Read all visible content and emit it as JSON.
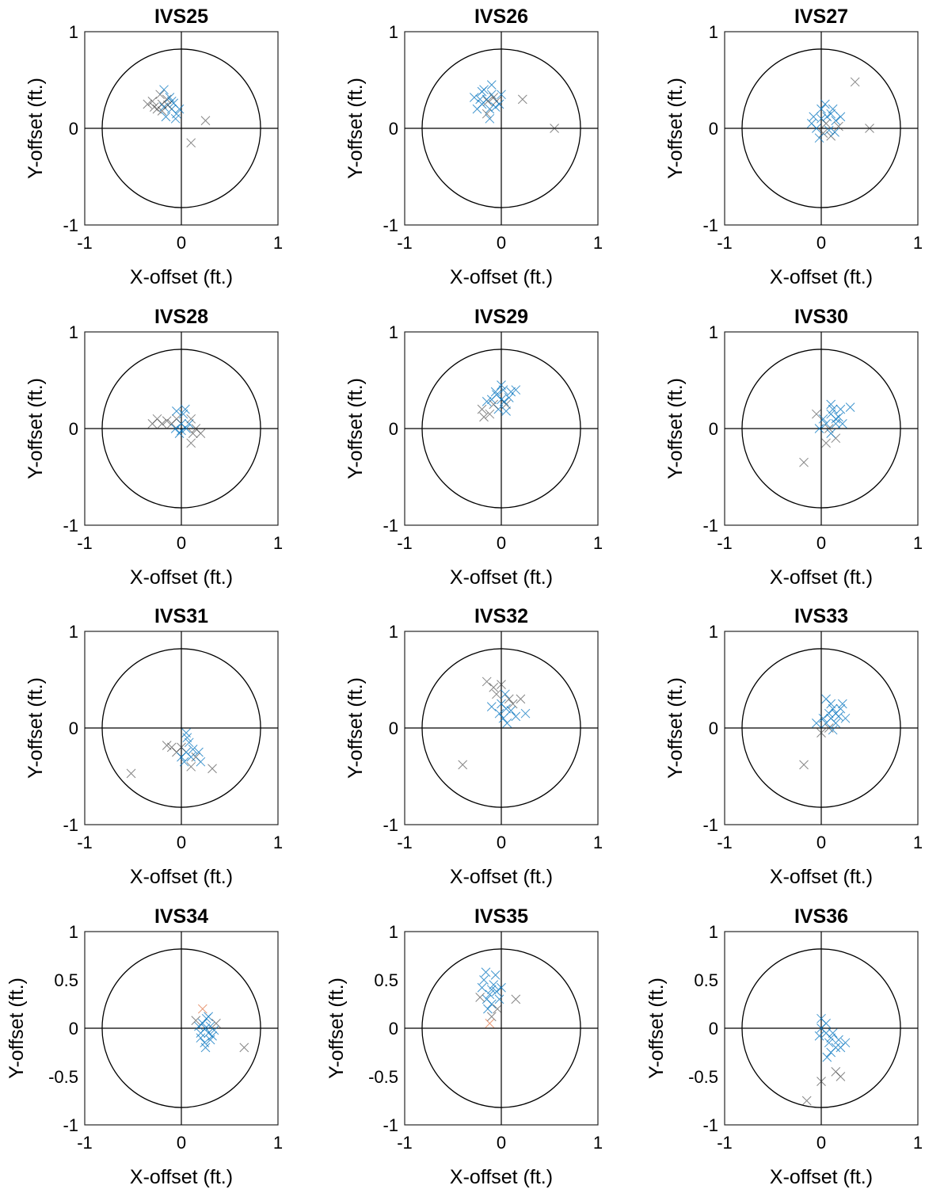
{
  "figure": {
    "xlabel": "X-offset (ft.)",
    "ylabel": "Y-offset (ft.)",
    "marker_colors": [
      "#0072BD",
      "#333333",
      "#D95319"
    ]
  },
  "chart_data": [
    {
      "type": "scatter",
      "title": "IVS25",
      "xlim": [
        -1,
        1
      ],
      "ylim": [
        -1,
        1
      ],
      "xticks": [
        "-1",
        "0",
        "1"
      ],
      "yticks": [
        "-1",
        "0",
        "1"
      ],
      "circle_radius": 0.82,
      "xlabel": "X-offset (ft.)",
      "ylabel": "Y-offset (ft.)",
      "points": [
        [
          -0.2,
          0.25,
          1
        ],
        [
          -0.15,
          0.3,
          1
        ],
        [
          -0.1,
          0.2,
          0
        ],
        [
          -0.25,
          0.2,
          1
        ],
        [
          -0.05,
          0.15,
          0
        ],
        [
          -0.18,
          0.22,
          0
        ],
        [
          -0.3,
          0.28,
          1
        ],
        [
          -0.12,
          0.32,
          0
        ],
        [
          -0.2,
          0.18,
          1
        ],
        [
          -0.08,
          0.26,
          0
        ],
        [
          -0.22,
          0.35,
          1
        ],
        [
          -0.02,
          0.2,
          0
        ],
        [
          -0.16,
          0.12,
          0
        ],
        [
          -0.28,
          0.22,
          1
        ],
        [
          -0.1,
          0.28,
          0
        ],
        [
          -0.06,
          0.1,
          0
        ],
        [
          -0.14,
          0.24,
          1
        ],
        [
          0.25,
          0.08,
          1
        ],
        [
          0.1,
          -0.15,
          1
        ],
        [
          -0.18,
          0.4,
          0
        ],
        [
          -0.35,
          0.25,
          1
        ]
      ]
    },
    {
      "type": "scatter",
      "title": "IVS26",
      "xlim": [
        -1,
        1
      ],
      "ylim": [
        -1,
        1
      ],
      "xticks": [
        "-1",
        "0",
        "1"
      ],
      "yticks": [
        "-1",
        "0",
        "1"
      ],
      "circle_radius": 0.82,
      "xlabel": "X-offset (ft.)",
      "ylabel": "Y-offset (ft.)",
      "points": [
        [
          -0.15,
          0.3,
          0
        ],
        [
          -0.1,
          0.35,
          0
        ],
        [
          -0.2,
          0.25,
          0
        ],
        [
          -0.05,
          0.28,
          1
        ],
        [
          -0.18,
          0.4,
          0
        ],
        [
          -0.12,
          0.2,
          0
        ],
        [
          -0.08,
          0.32,
          1
        ],
        [
          -0.22,
          0.3,
          0
        ],
        [
          -0.1,
          0.45,
          0
        ],
        [
          -0.25,
          0.2,
          0
        ],
        [
          -0.02,
          0.25,
          0
        ],
        [
          -0.15,
          0.15,
          1
        ],
        [
          0.0,
          0.35,
          0
        ],
        [
          -0.2,
          0.38,
          0
        ],
        [
          -0.06,
          0.22,
          0
        ],
        [
          -0.14,
          0.28,
          1
        ],
        [
          0.22,
          0.3,
          1
        ],
        [
          0.55,
          0.0,
          1
        ],
        [
          -0.28,
          0.32,
          0
        ],
        [
          -0.12,
          0.1,
          0
        ]
      ]
    },
    {
      "type": "scatter",
      "title": "IVS27",
      "xlim": [
        -1,
        1
      ],
      "ylim": [
        -1,
        1
      ],
      "xticks": [
        "-1",
        "0",
        "1"
      ],
      "yticks": [
        "-1",
        "0",
        "1"
      ],
      "circle_radius": 0.82,
      "xlabel": "X-offset (ft.)",
      "ylabel": "Y-offset (ft.)",
      "points": [
        [
          0.0,
          0.1,
          0
        ],
        [
          0.05,
          0.05,
          1
        ],
        [
          0.1,
          0.15,
          0
        ],
        [
          -0.05,
          0.0,
          0
        ],
        [
          0.02,
          -0.05,
          1
        ],
        [
          0.15,
          0.08,
          0
        ],
        [
          0.08,
          -0.02,
          0
        ],
        [
          -0.08,
          0.12,
          0
        ],
        [
          0.12,
          0.2,
          0
        ],
        [
          0.0,
          0.2,
          0
        ],
        [
          0.18,
          0.02,
          1
        ],
        [
          -0.02,
          -0.1,
          0
        ],
        [
          0.06,
          0.12,
          0
        ],
        [
          0.2,
          0.12,
          0
        ],
        [
          -0.1,
          0.05,
          0
        ],
        [
          0.1,
          -0.08,
          1
        ],
        [
          0.35,
          0.48,
          1
        ],
        [
          0.5,
          0.0,
          1
        ],
        [
          0.04,
          0.25,
          0
        ],
        [
          0.14,
          -0.04,
          0
        ]
      ]
    },
    {
      "type": "scatter",
      "title": "IVS28",
      "xlim": [
        -1,
        1
      ],
      "ylim": [
        -1,
        1
      ],
      "xticks": [
        "-1",
        "0",
        "1"
      ],
      "yticks": [
        "-1",
        "0",
        "1"
      ],
      "circle_radius": 0.82,
      "xlabel": "X-offset (ft.)",
      "ylabel": "Y-offset (ft.)",
      "points": [
        [
          0.0,
          0.05,
          0
        ],
        [
          -0.05,
          0.1,
          1
        ],
        [
          0.05,
          0.0,
          0
        ],
        [
          -0.1,
          0.05,
          1
        ],
        [
          0.02,
          0.15,
          0
        ],
        [
          0.08,
          0.05,
          0
        ],
        [
          -0.02,
          -0.05,
          0
        ],
        [
          -0.15,
          0.08,
          1
        ],
        [
          0.1,
          0.1,
          1
        ],
        [
          0.0,
          -0.02,
          0
        ],
        [
          -0.2,
          0.05,
          1
        ],
        [
          0.12,
          -0.05,
          1
        ],
        [
          0.04,
          0.2,
          0
        ],
        [
          -0.06,
          0.0,
          0
        ],
        [
          0.15,
          0.0,
          1
        ],
        [
          -0.25,
          0.1,
          1
        ],
        [
          -0.05,
          0.18,
          0
        ],
        [
          0.1,
          -0.15,
          1
        ],
        [
          0.2,
          -0.05,
          1
        ],
        [
          -0.3,
          0.05,
          1
        ]
      ]
    },
    {
      "type": "scatter",
      "title": "IVS29",
      "xlim": [
        -1,
        1
      ],
      "ylim": [
        -1,
        1
      ],
      "xticks": [
        "-1",
        "0",
        "1"
      ],
      "yticks": [
        "-1",
        "0",
        "1"
      ],
      "circle_radius": 0.82,
      "xlabel": "X-offset (ft.)",
      "ylabel": "Y-offset (ft.)",
      "points": [
        [
          0.0,
          0.3,
          0
        ],
        [
          -0.05,
          0.35,
          0
        ],
        [
          0.05,
          0.25,
          1
        ],
        [
          -0.1,
          0.3,
          0
        ],
        [
          0.02,
          0.4,
          0
        ],
        [
          -0.03,
          0.2,
          0
        ],
        [
          0.08,
          0.32,
          0
        ],
        [
          -0.08,
          0.25,
          1
        ],
        [
          0.0,
          0.45,
          0
        ],
        [
          0.1,
          0.38,
          0
        ],
        [
          -0.12,
          0.15,
          1
        ],
        [
          0.05,
          0.18,
          0
        ],
        [
          -0.15,
          0.28,
          0
        ],
        [
          0.15,
          0.4,
          0
        ],
        [
          -0.2,
          0.2,
          1
        ],
        [
          0.03,
          0.28,
          0
        ],
        [
          -0.06,
          0.38,
          0
        ],
        [
          -0.18,
          0.12,
          1
        ]
      ]
    },
    {
      "type": "scatter",
      "title": "IVS30",
      "xlim": [
        -1,
        1
      ],
      "ylim": [
        -1,
        1
      ],
      "xticks": [
        "-1",
        "0",
        "1"
      ],
      "yticks": [
        "-1",
        "0",
        "1"
      ],
      "circle_radius": 0.82,
      "xlabel": "X-offset (ft.)",
      "ylabel": "Y-offset (ft.)",
      "points": [
        [
          0.1,
          0.15,
          0
        ],
        [
          0.15,
          0.1,
          0
        ],
        [
          0.05,
          0.05,
          0
        ],
        [
          0.12,
          0.2,
          0
        ],
        [
          0.08,
          0.0,
          1
        ],
        [
          0.18,
          0.12,
          0
        ],
        [
          0.02,
          0.1,
          0
        ],
        [
          0.1,
          0.25,
          0
        ],
        [
          0.15,
          0.05,
          0
        ],
        [
          -0.02,
          0.0,
          0
        ],
        [
          0.2,
          0.2,
          0
        ],
        [
          0.05,
          -0.15,
          1
        ],
        [
          0.15,
          -0.1,
          1
        ],
        [
          -0.05,
          0.15,
          1
        ],
        [
          0.3,
          0.22,
          0
        ],
        [
          -0.18,
          -0.35,
          1
        ],
        [
          0.1,
          -0.05,
          0
        ],
        [
          0.22,
          0.05,
          0
        ]
      ]
    },
    {
      "type": "scatter",
      "title": "IVS31",
      "xlim": [
        -1,
        1
      ],
      "ylim": [
        -1,
        1
      ],
      "xticks": [
        "-1",
        "0",
        "1"
      ],
      "yticks": [
        "-1",
        "0",
        "1"
      ],
      "circle_radius": 0.82,
      "xlabel": "X-offset (ft.)",
      "ylabel": "Y-offset (ft.)",
      "points": [
        [
          0.05,
          -0.25,
          0
        ],
        [
          0.0,
          -0.2,
          1
        ],
        [
          0.1,
          -0.3,
          0
        ],
        [
          0.08,
          -0.15,
          0
        ],
        [
          -0.05,
          -0.25,
          1
        ],
        [
          0.12,
          -0.22,
          0
        ],
        [
          0.03,
          -0.35,
          0
        ],
        [
          -0.1,
          -0.2,
          1
        ],
        [
          0.15,
          -0.3,
          1
        ],
        [
          0.06,
          -0.1,
          0
        ],
        [
          0.18,
          -0.25,
          0
        ],
        [
          0.0,
          -0.3,
          0
        ],
        [
          -0.15,
          -0.18,
          1
        ],
        [
          0.1,
          -0.4,
          1
        ],
        [
          0.32,
          -0.42,
          1
        ],
        [
          -0.52,
          -0.47,
          1
        ],
        [
          0.05,
          -0.05,
          0
        ],
        [
          0.2,
          -0.35,
          0
        ]
      ]
    },
    {
      "type": "scatter",
      "title": "IVS32",
      "xlim": [
        -1,
        1
      ],
      "ylim": [
        -1,
        1
      ],
      "xticks": [
        "-1",
        "0",
        "1"
      ],
      "yticks": [
        "-1",
        "0",
        "1"
      ],
      "circle_radius": 0.82,
      "xlabel": "X-offset (ft.)",
      "ylabel": "Y-offset (ft.)",
      "points": [
        [
          0.05,
          0.2,
          0
        ],
        [
          0.0,
          0.25,
          0
        ],
        [
          0.08,
          0.3,
          1
        ],
        [
          -0.02,
          0.15,
          0
        ],
        [
          0.1,
          0.18,
          0
        ],
        [
          -0.05,
          0.35,
          1
        ],
        [
          0.02,
          0.1,
          0
        ],
        [
          0.12,
          0.25,
          1
        ],
        [
          -0.08,
          0.42,
          1
        ],
        [
          0.06,
          0.05,
          0
        ],
        [
          0.15,
          0.12,
          0
        ],
        [
          -0.15,
          0.48,
          1
        ],
        [
          0.0,
          0.45,
          1
        ],
        [
          0.2,
          0.3,
          1
        ],
        [
          -0.1,
          0.22,
          0
        ],
        [
          -0.4,
          -0.38,
          1
        ],
        [
          0.25,
          0.15,
          0
        ],
        [
          0.04,
          0.35,
          0
        ]
      ]
    },
    {
      "type": "scatter",
      "title": "IVS33",
      "xlim": [
        -1,
        1
      ],
      "ylim": [
        -1,
        1
      ],
      "xticks": [
        "-1",
        "0",
        "1"
      ],
      "yticks": [
        "-1",
        "0",
        "1"
      ],
      "circle_radius": 0.82,
      "xlabel": "X-offset (ft.)",
      "ylabel": "Y-offset (ft.)",
      "points": [
        [
          0.1,
          0.1,
          0
        ],
        [
          0.15,
          0.15,
          0
        ],
        [
          0.05,
          0.05,
          0
        ],
        [
          0.12,
          0.2,
          0
        ],
        [
          0.08,
          0.0,
          1
        ],
        [
          0.18,
          0.12,
          0
        ],
        [
          0.02,
          0.1,
          0
        ],
        [
          0.1,
          0.25,
          0
        ],
        [
          0.15,
          0.05,
          0
        ],
        [
          0.0,
          -0.05,
          1
        ],
        [
          0.2,
          0.2,
          0
        ],
        [
          -0.05,
          0.05,
          0
        ],
        [
          0.12,
          -0.02,
          0
        ],
        [
          0.22,
          0.25,
          0
        ],
        [
          0.05,
          0.3,
          0
        ],
        [
          -0.18,
          -0.38,
          1
        ],
        [
          0.25,
          0.1,
          0
        ],
        [
          0.08,
          0.15,
          0
        ]
      ]
    },
    {
      "type": "scatter",
      "title": "IVS34",
      "xlim": [
        -1,
        1
      ],
      "ylim": [
        -1,
        1
      ],
      "xticks": [
        "-1",
        "0",
        "1"
      ],
      "yticks": [
        "-1",
        "-0.5",
        "0",
        "0.5",
        "1"
      ],
      "circle_radius": 0.82,
      "xlabel": "X-offset (ft.)",
      "ylabel": "Y-offset (ft.)",
      "points": [
        [
          0.25,
          0.0,
          0
        ],
        [
          0.22,
          0.05,
          0
        ],
        [
          0.28,
          -0.05,
          0
        ],
        [
          0.2,
          -0.1,
          0
        ],
        [
          0.3,
          0.02,
          0
        ],
        [
          0.24,
          -0.15,
          0
        ],
        [
          0.18,
          0.02,
          0
        ],
        [
          0.26,
          0.1,
          0
        ],
        [
          0.32,
          -0.08,
          0
        ],
        [
          0.2,
          -0.05,
          0
        ],
        [
          0.28,
          0.12,
          0
        ],
        [
          0.15,
          0.08,
          1
        ],
        [
          0.3,
          -0.12,
          0
        ],
        [
          0.22,
          0.2,
          2
        ],
        [
          0.36,
          0.05,
          1
        ],
        [
          0.65,
          -0.2,
          1
        ],
        [
          0.25,
          -0.2,
          0
        ],
        [
          0.34,
          -0.02,
          0
        ]
      ]
    },
    {
      "type": "scatter",
      "title": "IVS35",
      "xlim": [
        -1,
        1
      ],
      "ylim": [
        -1,
        1
      ],
      "xticks": [
        "-1",
        "0",
        "1"
      ],
      "yticks": [
        "-1",
        "-0.5",
        "0",
        "0.5",
        "1"
      ],
      "circle_radius": 0.82,
      "xlabel": "X-offset (ft.)",
      "ylabel": "Y-offset (ft.)",
      "points": [
        [
          -0.1,
          0.4,
          0
        ],
        [
          -0.12,
          0.35,
          0
        ],
        [
          -0.08,
          0.45,
          0
        ],
        [
          -0.15,
          0.3,
          0
        ],
        [
          -0.05,
          0.38,
          0
        ],
        [
          -0.18,
          0.5,
          0
        ],
        [
          -0.1,
          0.25,
          0
        ],
        [
          -0.2,
          0.42,
          0
        ],
        [
          -0.06,
          0.55,
          0
        ],
        [
          -0.14,
          0.2,
          0
        ],
        [
          -0.02,
          0.3,
          0
        ],
        [
          -0.22,
          0.32,
          1
        ],
        [
          -0.1,
          0.12,
          1
        ],
        [
          0.0,
          0.42,
          0
        ],
        [
          -0.16,
          0.58,
          0
        ],
        [
          0.15,
          0.3,
          1
        ],
        [
          -0.12,
          0.05,
          2
        ],
        [
          -0.04,
          0.2,
          1
        ]
      ]
    },
    {
      "type": "scatter",
      "title": "IVS36",
      "xlim": [
        -1,
        1
      ],
      "ylim": [
        -1,
        1
      ],
      "xticks": [
        "-1",
        "0",
        "1"
      ],
      "yticks": [
        "-1",
        "-0.5",
        "0",
        "0.5",
        "1"
      ],
      "circle_radius": 0.82,
      "xlabel": "X-offset (ft.)",
      "ylabel": "Y-offset (ft.)",
      "points": [
        [
          0.05,
          -0.05,
          0
        ],
        [
          0.1,
          -0.1,
          0
        ],
        [
          0.0,
          0.0,
          0
        ],
        [
          0.08,
          -0.15,
          0
        ],
        [
          0.12,
          -0.05,
          0
        ],
        [
          -0.02,
          -0.08,
          0
        ],
        [
          0.15,
          -0.2,
          0
        ],
        [
          0.05,
          0.05,
          0
        ],
        [
          0.1,
          -0.25,
          0
        ],
        [
          0.18,
          -0.12,
          0
        ],
        [
          0.0,
          0.1,
          0
        ],
        [
          0.2,
          -0.2,
          0
        ],
        [
          0.15,
          -0.45,
          1
        ],
        [
          0.2,
          -0.5,
          1
        ],
        [
          -0.15,
          -0.75,
          1
        ],
        [
          0.0,
          -0.55,
          1
        ],
        [
          0.25,
          -0.15,
          0
        ],
        [
          0.06,
          -0.3,
          0
        ]
      ]
    }
  ]
}
